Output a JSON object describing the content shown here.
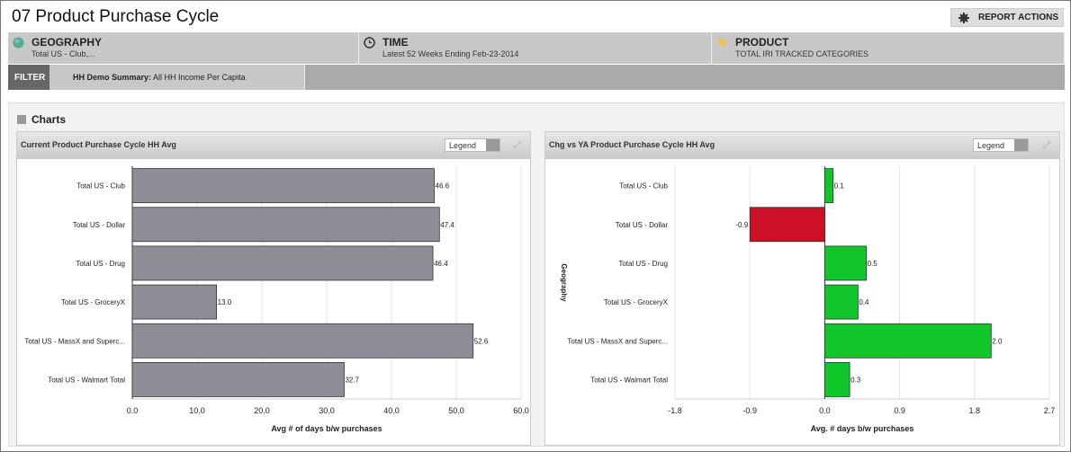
{
  "title": "07 Product Purchase Cycle",
  "report_actions": "REPORT ACTIONS",
  "selectors": [
    {
      "label": "GEOGRAPHY",
      "value": "Total US - Club,..."
    },
    {
      "label": "TIME",
      "value": "Latest 52 Weeks Ending Feb-23-2014"
    },
    {
      "label": "PRODUCT",
      "value": "TOTAL IRI TRACKED CATEGORIES"
    }
  ],
  "filter": {
    "label": "FILTER",
    "key": "HH Demo Summary:",
    "value": " All HH Income Per Capita"
  },
  "charts_title": "Charts",
  "legend_label": "Legend",
  "chart_data": [
    {
      "type": "bar",
      "title": "Current Product Purchase Cycle HH Avg",
      "categories": [
        "Total US - Club",
        "Total US - Dollar",
        "Total US - Drug",
        "Total US - GroceryX",
        "Total US - MassX and Superc...",
        "Total US - Walmart Total"
      ],
      "values": [
        46.6,
        47.4,
        46.4,
        13.0,
        52.6,
        32.7
      ],
      "labels": [
        "46.6",
        "47.4",
        "46.4",
        "13.0",
        "52.6",
        "32.7"
      ],
      "xlabel": "Avg # of days b/w purchases",
      "ylabel": "",
      "xlim": [
        0,
        60
      ],
      "ticks": [
        "0.0",
        "10.0",
        "20.0",
        "30.0",
        "40.0",
        "50.0",
        "60.0"
      ],
      "color": "#8e8f96"
    },
    {
      "type": "bar",
      "title": "Chg vs YA Product Purchase Cycle HH Avg",
      "categories": [
        "Total US - Club",
        "Total US - Dollar",
        "Total US - Drug",
        "Total US - GroceryX",
        "Total US - MassX and Superc...",
        "Total US - Walmart Total"
      ],
      "values": [
        0.1,
        -0.9,
        0.5,
        0.4,
        2.0,
        0.3
      ],
      "labels": [
        "0.1",
        "-0.9",
        "0.5",
        "0.4",
        "2.0",
        "0.3"
      ],
      "xlabel": "Avg. # days b/w purchases",
      "ylabel": "Geography",
      "xlim": [
        -1.8,
        2.7
      ],
      "ticks": [
        "-1.8",
        "-0.9",
        "0.0",
        "0.9",
        "1.8",
        "2.7"
      ],
      "pos_color": "#11c62a",
      "neg_color": "#cc1028"
    }
  ]
}
